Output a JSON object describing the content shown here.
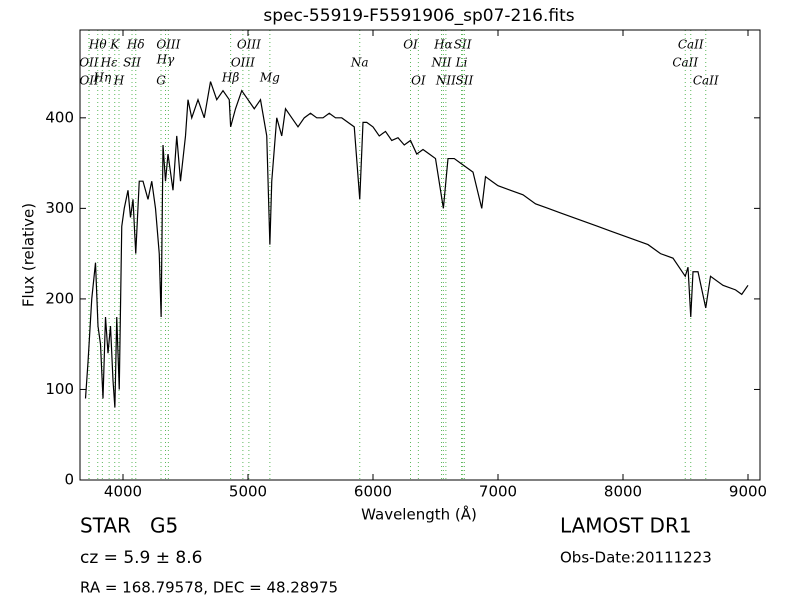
{
  "chart_data": {
    "type": "line",
    "title": "spec-55919-F5591906_sp07-216.fits",
    "xlabel": "Wavelength (Å)",
    "ylabel": "Flux (relative)",
    "color": "#000000",
    "xlim": [
      3656,
      9096
    ],
    "ylim": [
      0,
      497
    ],
    "xticks": [
      4000,
      5000,
      6000,
      7000,
      8000,
      9000
    ],
    "yticks": [
      0,
      100,
      200,
      300,
      400
    ],
    "x": [
      3700,
      3720,
      3750,
      3780,
      3800,
      3820,
      3840,
      3860,
      3880,
      3900,
      3920,
      3935,
      3950,
      3970,
      3990,
      4010,
      4040,
      4060,
      4080,
      4102,
      4130,
      4160,
      4200,
      4230,
      4260,
      4290,
      4305,
      4320,
      4340,
      4360,
      4400,
      4430,
      4460,
      4500,
      4520,
      4550,
      4600,
      4650,
      4700,
      4750,
      4800,
      4850,
      4861,
      4900,
      4950,
      5000,
      5050,
      5100,
      5150,
      5175,
      5190,
      5230,
      5270,
      5300,
      5350,
      5400,
      5450,
      5500,
      5550,
      5600,
      5650,
      5700,
      5750,
      5800,
      5850,
      5894,
      5920,
      5950,
      6000,
      6050,
      6100,
      6150,
      6200,
      6250,
      6300,
      6350,
      6400,
      6450,
      6500,
      6563,
      6600,
      6650,
      6700,
      6750,
      6800,
      6870,
      6900,
      6950,
      7000,
      7100,
      7200,
      7300,
      7400,
      7500,
      7600,
      7700,
      7800,
      7900,
      8000,
      8100,
      8200,
      8300,
      8400,
      8498,
      8520,
      8542,
      8560,
      8600,
      8662,
      8700,
      8800,
      8900,
      8950,
      9000
    ],
    "values": [
      90,
      130,
      200,
      240,
      170,
      150,
      90,
      180,
      140,
      170,
      110,
      80,
      180,
      100,
      280,
      300,
      320,
      290,
      310,
      250,
      330,
      330,
      310,
      330,
      300,
      250,
      180,
      370,
      330,
      360,
      320,
      380,
      330,
      380,
      420,
      400,
      420,
      400,
      440,
      420,
      430,
      420,
      390,
      410,
      430,
      420,
      410,
      420,
      380,
      260,
      330,
      400,
      380,
      410,
      400,
      390,
      400,
      405,
      400,
      400,
      405,
      400,
      400,
      395,
      390,
      310,
      395,
      395,
      390,
      380,
      385,
      375,
      378,
      370,
      375,
      360,
      365,
      360,
      355,
      300,
      355,
      355,
      350,
      345,
      340,
      300,
      335,
      330,
      325,
      320,
      315,
      305,
      300,
      295,
      290,
      285,
      280,
      275,
      270,
      265,
      260,
      250,
      245,
      225,
      235,
      180,
      230,
      230,
      190,
      225,
      215,
      210,
      205,
      215
    ],
    "line_color": "#5cb85c",
    "lines": [
      {
        "wavelength": 3727,
        "label": "OII"
      },
      {
        "wavelength": 3729,
        "label": "OII"
      },
      {
        "wavelength": 3798,
        "label": "Hθ"
      },
      {
        "wavelength": 3835,
        "label": "Hη"
      },
      {
        "wavelength": 3889,
        "label": "Hε"
      },
      {
        "wavelength": 3934,
        "label": "K"
      },
      {
        "wavelength": 3968,
        "label": "H"
      },
      {
        "wavelength": 4072,
        "label": "SII"
      },
      {
        "wavelength": 4102,
        "label": "Hδ"
      },
      {
        "wavelength": 4304,
        "label": "G"
      },
      {
        "wavelength": 4340,
        "label": "Hγ"
      },
      {
        "wavelength": 4363,
        "label": "OIII"
      },
      {
        "wavelength": 4861,
        "label": "Hβ"
      },
      {
        "wavelength": 4959,
        "label": "OIII"
      },
      {
        "wavelength": 5007,
        "label": "OIII"
      },
      {
        "wavelength": 5175,
        "label": "Mg"
      },
      {
        "wavelength": 5894,
        "label": "Na"
      },
      {
        "wavelength": 6300,
        "label": "OI"
      },
      {
        "wavelength": 6363,
        "label": "OI"
      },
      {
        "wavelength": 6548,
        "label": "NII"
      },
      {
        "wavelength": 6563,
        "label": "Hα"
      },
      {
        "wavelength": 6583,
        "label": "NII"
      },
      {
        "wavelength": 6708,
        "label": "Li"
      },
      {
        "wavelength": 6717,
        "label": "SII"
      },
      {
        "wavelength": 6731,
        "label": "SII"
      },
      {
        "wavelength": 8498,
        "label": "CaII"
      },
      {
        "wavelength": 8542,
        "label": "CaII"
      },
      {
        "wavelength": 8662,
        "label": "CaII"
      }
    ],
    "annotations": [
      "STAR   G5",
      "cz = 5.9 ± 8.6",
      "RA = 168.79578, DEC = 48.28975",
      "LAMOST DR1",
      "Obs-Date:20111223"
    ]
  }
}
